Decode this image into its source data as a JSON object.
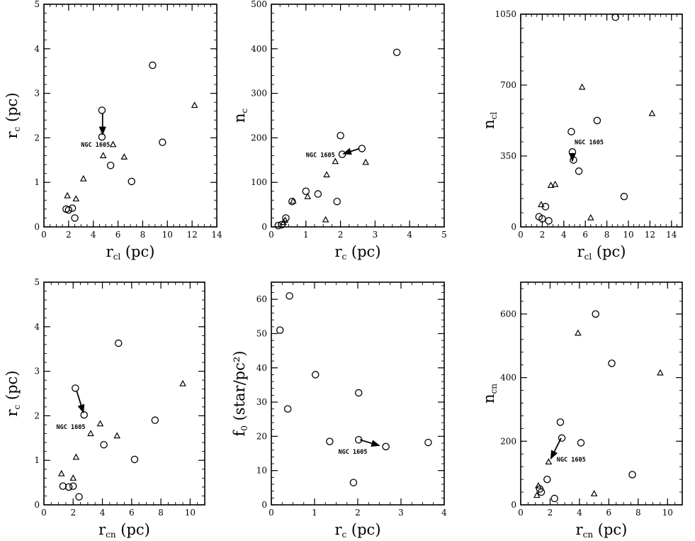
{
  "chart_data": [
    {
      "type": "scatter",
      "xlim": [
        0,
        14
      ],
      "ylim": [
        0,
        5
      ],
      "xticks": [
        0,
        2,
        4,
        6,
        8,
        10,
        12,
        14
      ],
      "yticks": [
        0,
        1,
        2,
        3,
        4,
        5
      ],
      "xlabel": {
        "main": "r",
        "sub": "cl",
        "unit": "(pc)"
      },
      "ylabel": {
        "main": "r",
        "sub": "c",
        "unit": "(pc)"
      },
      "series": [
        {
          "marker": "circle",
          "points": [
            [
              1.8,
              0.4
            ],
            [
              2.0,
              0.38
            ],
            [
              2.3,
              0.42
            ],
            [
              2.5,
              0.2
            ],
            [
              4.7,
              2.62
            ],
            [
              4.7,
              2.02
            ],
            [
              5.4,
              1.38
            ],
            [
              7.1,
              1.02
            ],
            [
              8.8,
              3.63
            ],
            [
              9.6,
              1.9
            ]
          ]
        },
        {
          "marker": "triangle",
          "points": [
            [
              1.9,
              0.7
            ],
            [
              2.6,
              0.63
            ],
            [
              3.2,
              1.08
            ],
            [
              4.8,
              1.6
            ],
            [
              5.6,
              1.85
            ],
            [
              6.5,
              1.57
            ],
            [
              12.2,
              2.73
            ]
          ]
        }
      ],
      "annotation": {
        "text": "NGC 1605",
        "at": [
          3.0,
          1.85
        ],
        "arrow_from": [
          4.75,
          2.55
        ],
        "arrow_to": [
          4.75,
          2.07
        ]
      }
    },
    {
      "type": "scatter",
      "xlim": [
        0,
        5
      ],
      "ylim": [
        0,
        500
      ],
      "xticks": [
        0,
        1,
        2,
        3,
        4,
        5
      ],
      "yticks": [
        0,
        100,
        200,
        300,
        400,
        500
      ],
      "xlabel": {
        "main": "r",
        "sub": "c",
        "unit": "(pc)"
      },
      "ylabel": {
        "main": "n",
        "sub": "c",
        "unit": ""
      },
      "series": [
        {
          "marker": "circle",
          "points": [
            [
              0.2,
              3
            ],
            [
              0.3,
              5
            ],
            [
              0.42,
              20
            ],
            [
              0.6,
              57
            ],
            [
              1.0,
              80
            ],
            [
              1.35,
              74
            ],
            [
              1.9,
              57
            ],
            [
              2.0,
              205
            ],
            [
              2.05,
              163
            ],
            [
              2.62,
              176
            ],
            [
              3.63,
              392
            ]
          ]
        },
        {
          "marker": "triangle",
          "points": [
            [
              0.35,
              10
            ],
            [
              0.4,
              15
            ],
            [
              0.63,
              58
            ],
            [
              1.05,
              68
            ],
            [
              1.57,
              16
            ],
            [
              1.6,
              117
            ],
            [
              1.85,
              147
            ],
            [
              2.73,
              145
            ]
          ]
        }
      ],
      "annotation": {
        "text": "NGC 1605",
        "at": [
          1.0,
          162
        ],
        "arrow_from": [
          2.55,
          176
        ],
        "arrow_to": [
          2.08,
          164
        ]
      }
    },
    {
      "type": "scatter",
      "xlim": [
        0,
        15
      ],
      "ylim": [
        0,
        1050
      ],
      "xticks": [
        0,
        2,
        4,
        6,
        8,
        10,
        12,
        14
      ],
      "yticks": [
        0,
        350,
        700,
        1050
      ],
      "xlabel": {
        "main": "r",
        "sub": "cl",
        "unit": "(pc)"
      },
      "ylabel": {
        "main": "n",
        "sub": "cl",
        "unit": ""
      },
      "series": [
        {
          "marker": "circle",
          "points": [
            [
              1.7,
              50
            ],
            [
              2.0,
              40
            ],
            [
              2.3,
              100
            ],
            [
              2.6,
              30
            ],
            [
              4.7,
              470
            ],
            [
              4.8,
              370
            ],
            [
              4.9,
              330
            ],
            [
              5.4,
              275
            ],
            [
              7.1,
              525
            ],
            [
              8.8,
              1035
            ],
            [
              9.6,
              150
            ]
          ]
        },
        {
          "marker": "triangle",
          "points": [
            [
              1.9,
              110
            ],
            [
              2.8,
              205
            ],
            [
              3.2,
              210
            ],
            [
              5.7,
              690
            ],
            [
              6.5,
              45
            ],
            [
              12.2,
              560
            ]
          ]
        }
      ],
      "annotation": {
        "text": "NGC 1605",
        "at": [
          5.0,
          418
        ],
        "arrow_from": [
          4.8,
          365
        ],
        "arrow_to": [
          4.8,
          325
        ]
      }
    },
    {
      "type": "scatter",
      "xlim": [
        0,
        11
      ],
      "ylim": [
        0,
        5
      ],
      "xticks": [
        0,
        2,
        4,
        6,
        8,
        10
      ],
      "yticks": [
        0,
        1,
        2,
        3,
        4,
        5
      ],
      "xlabel": {
        "main": "r",
        "sub": "cn",
        "unit": "(pc)"
      },
      "ylabel": {
        "main": "r",
        "sub": "c",
        "unit": "(pc)"
      },
      "series": [
        {
          "marker": "circle",
          "points": [
            [
              1.3,
              0.42
            ],
            [
              1.7,
              0.4
            ],
            [
              2.0,
              0.42
            ],
            [
              2.4,
              0.18
            ],
            [
              2.15,
              2.62
            ],
            [
              2.75,
              2.02
            ],
            [
              4.1,
              1.35
            ],
            [
              5.1,
              3.63
            ],
            [
              6.2,
              1.02
            ],
            [
              7.6,
              1.9
            ]
          ]
        },
        {
          "marker": "triangle",
          "points": [
            [
              1.2,
              0.7
            ],
            [
              2.0,
              0.6
            ],
            [
              2.2,
              1.07
            ],
            [
              3.2,
              1.6
            ],
            [
              3.85,
              1.82
            ],
            [
              5.0,
              1.55
            ],
            [
              9.5,
              2.72
            ]
          ]
        }
      ],
      "annotation": {
        "text": "NGC 1605",
        "at": [
          0.85,
          1.75
        ],
        "arrow_from": [
          2.25,
          2.55
        ],
        "arrow_to": [
          2.7,
          2.07
        ]
      }
    },
    {
      "type": "scatter",
      "xlim": [
        0,
        4
      ],
      "ylim": [
        0,
        65
      ],
      "xticks": [
        0,
        1,
        2,
        3,
        4
      ],
      "yticks": [
        0,
        10,
        20,
        30,
        40,
        50,
        60
      ],
      "xlabel": {
        "main": "r",
        "sub": "c",
        "unit": "(pc)"
      },
      "ylabel": {
        "main": "f",
        "sub": "0",
        "unit": "(star/pc²)"
      },
      "series": [
        {
          "marker": "circle",
          "points": [
            [
              0.2,
              51
            ],
            [
              0.38,
              28
            ],
            [
              0.42,
              61
            ],
            [
              1.02,
              38
            ],
            [
              1.35,
              18.5
            ],
            [
              1.9,
              6.5
            ],
            [
              2.02,
              19
            ],
            [
              2.02,
              32.7
            ],
            [
              2.65,
              17
            ],
            [
              3.63,
              18.2
            ]
          ]
        }
      ],
      "annotation": {
        "text": "NGC 1605",
        "at": [
          1.55,
          15.5
        ],
        "arrow_from": [
          2.05,
          19
        ],
        "arrow_to": [
          2.5,
          17.3
        ]
      }
    },
    {
      "type": "scatter",
      "xlim": [
        0,
        11
      ],
      "ylim": [
        0,
        700
      ],
      "xticks": [
        0,
        2,
        4,
        6,
        8,
        10
      ],
      "yticks": [
        0,
        200,
        400,
        600
      ],
      "xlabel": {
        "main": "r",
        "sub": "cn",
        "unit": "(pc)"
      },
      "ylabel": {
        "main": "n",
        "sub": "cn",
        "unit": ""
      },
      "series": [
        {
          "marker": "circle",
          "points": [
            [
              1.3,
              50
            ],
            [
              1.4,
              40
            ],
            [
              1.8,
              80
            ],
            [
              2.3,
              20
            ],
            [
              2.7,
              260
            ],
            [
              2.8,
              210
            ],
            [
              4.1,
              195
            ],
            [
              5.1,
              600
            ],
            [
              6.2,
              445
            ],
            [
              7.6,
              95
            ]
          ]
        },
        {
          "marker": "triangle",
          "points": [
            [
              1.1,
              30
            ],
            [
              1.2,
              60
            ],
            [
              1.9,
              135
            ],
            [
              3.9,
              540
            ],
            [
              5.0,
              35
            ],
            [
              9.5,
              415
            ]
          ]
        }
      ],
      "annotation": {
        "text": "NGC 1605",
        "at": [
          2.45,
          143
        ],
        "arrow_from": [
          2.75,
          210
        ],
        "arrow_to": [
          2.05,
          145
        ]
      }
    }
  ]
}
